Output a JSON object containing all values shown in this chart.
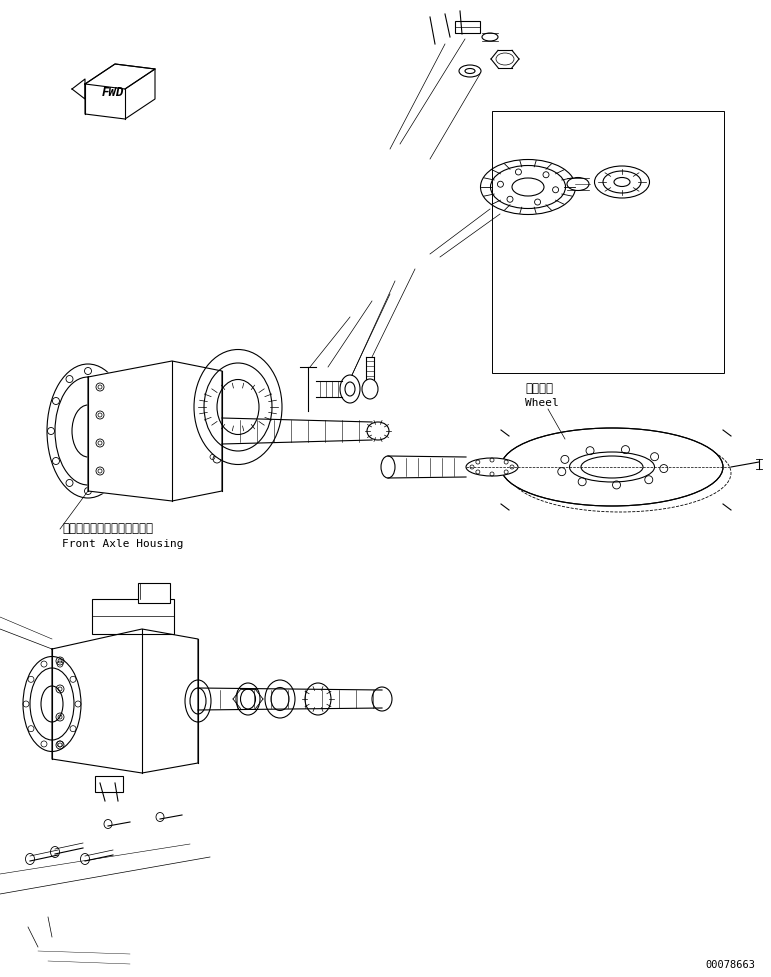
{
  "bg_color": "#ffffff",
  "line_color": "#000000",
  "fig_width": 7.71,
  "fig_height": 9.78,
  "dpi": 100,
  "label_front_axle_jp": "フロントアクスルハウジング",
  "label_front_axle_en": "Front Axle Housing",
  "label_wheel_jp": "ホイール",
  "label_wheel_en": "Wheel",
  "label_fwd": "FWD",
  "part_number": "00078663"
}
